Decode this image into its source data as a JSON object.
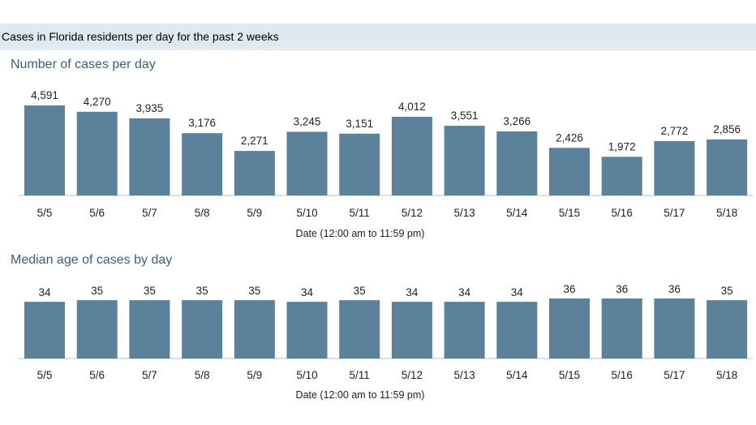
{
  "header": {
    "title": "Cases in Florida residents per day for the past 2 weeks"
  },
  "colors": {
    "bar": "#5b829a",
    "header_bg": "#dfe9f1",
    "title": "#3d5f78",
    "axis": "#bfbfbf"
  },
  "chart_data": [
    {
      "type": "bar",
      "title": "Number of cases per day",
      "xlabel": "Date (12:00 am to 11:59 pm)",
      "ylabel": "",
      "categories": [
        "5/5",
        "5/6",
        "5/7",
        "5/8",
        "5/9",
        "5/10",
        "5/11",
        "5/12",
        "5/13",
        "5/14",
        "5/15",
        "5/16",
        "5/17",
        "5/18"
      ],
      "values": [
        4591,
        4270,
        3935,
        3176,
        2271,
        3245,
        3151,
        4012,
        3551,
        3266,
        2426,
        1972,
        2772,
        2856
      ],
      "value_labels": [
        "4,591",
        "4,270",
        "3,935",
        "3,176",
        "2,271",
        "3,245",
        "3,151",
        "4,012",
        "3,551",
        "3,266",
        "2,426",
        "1,972",
        "2,772",
        "2,856"
      ],
      "ylim": [
        0,
        4591
      ],
      "grid": false,
      "legend": "none"
    },
    {
      "type": "bar",
      "title": "Median age of cases by day",
      "xlabel": "Date (12:00 am to 11:59 pm)",
      "ylabel": "",
      "categories": [
        "5/5",
        "5/6",
        "5/7",
        "5/8",
        "5/9",
        "5/10",
        "5/11",
        "5/12",
        "5/13",
        "5/14",
        "5/15",
        "5/16",
        "5/17",
        "5/18"
      ],
      "values": [
        34,
        35,
        35,
        35,
        35,
        34,
        35,
        34,
        34,
        34,
        36,
        36,
        36,
        35
      ],
      "value_labels": [
        "34",
        "35",
        "35",
        "35",
        "35",
        "34",
        "35",
        "34",
        "34",
        "34",
        "36",
        "36",
        "36",
        "35"
      ],
      "ylim": [
        0,
        36
      ],
      "grid": false,
      "legend": "none"
    }
  ]
}
